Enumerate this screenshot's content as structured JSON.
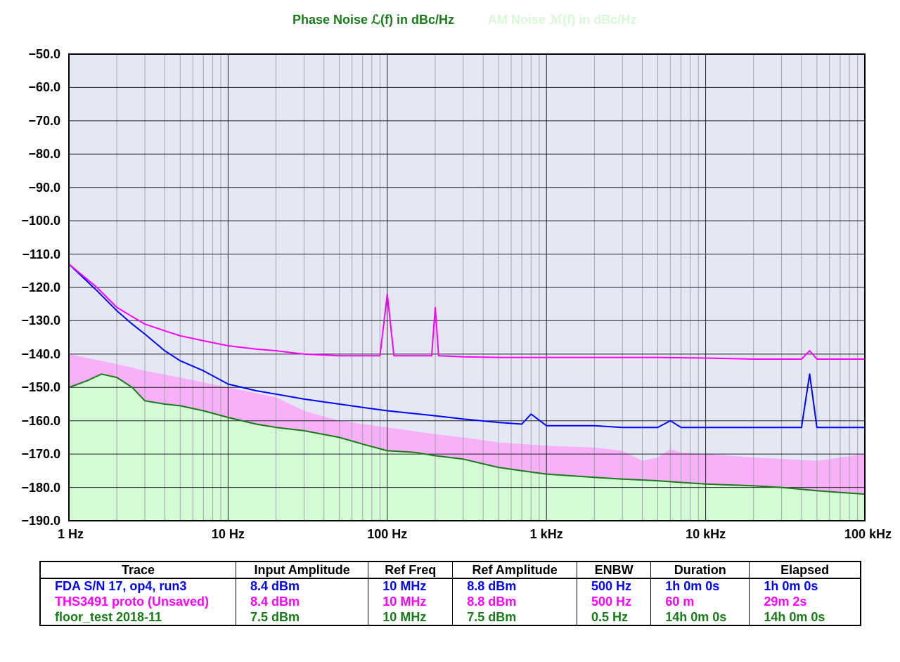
{
  "header": {
    "phase_title": "Phase Noise ℒ(f) in dBc/Hz",
    "am_title": "AM Noise ℳ(f) in dBc/Hz",
    "phase_color": "#1a7a1a",
    "am_color": "#d8f8d8"
  },
  "chart_data": {
    "type": "line",
    "xscale": "log",
    "xlim": [
      1,
      100000
    ],
    "ylim": [
      -190,
      -50
    ],
    "grid": true,
    "background": "#e4e8f4",
    "y_ticks": [
      "−50.0",
      "−60.0",
      "−70.0",
      "−80.0",
      "−90.0",
      "−100.0",
      "−110.0",
      "−120.0",
      "−130.0",
      "−140.0",
      "−150.0",
      "−160.0",
      "−170.0",
      "−180.0",
      "−190.0"
    ],
    "x_ticks": [
      "1 Hz",
      "10 Hz",
      "100 Hz",
      "1 kHz",
      "10 kHz",
      "100 kHz"
    ],
    "series": [
      {
        "name": "FDA S/N 17, op4, run3",
        "color": "#0000ff",
        "x": [
          1,
          1.5,
          2,
          2.5,
          3,
          4,
          5,
          7,
          10,
          15,
          20,
          30,
          50,
          70,
          100,
          200,
          300,
          500,
          700,
          800,
          1000,
          2000,
          3000,
          5000,
          6000,
          7000,
          10000,
          20000,
          30000,
          40000,
          45000,
          50000,
          70000,
          100000
        ],
        "y": [
          -113,
          -121,
          -127,
          -131,
          -134,
          -139,
          -142,
          -145,
          -149,
          -151,
          -152,
          -153.5,
          -155,
          -156,
          -157,
          -158.5,
          -159.5,
          -160.5,
          -161,
          -158,
          -161.5,
          -161.5,
          -162,
          -162,
          -160,
          -162,
          -162,
          -162,
          -162,
          -162,
          -146,
          -162,
          -162,
          -162
        ]
      },
      {
        "name": "THS3491 proto (Unsaved)",
        "color": "#ff00ff",
        "x": [
          1,
          1.5,
          2,
          3,
          4,
          5,
          7,
          10,
          15,
          20,
          30,
          50,
          70,
          90,
          100,
          110,
          150,
          190,
          200,
          210,
          300,
          500,
          700,
          1000,
          2000,
          5000,
          10000,
          20000,
          40000,
          45000,
          50000,
          100000
        ],
        "y": [
          -113,
          -120,
          -126,
          -131,
          -133,
          -134.5,
          -136,
          -137.5,
          -138.5,
          -139,
          -140,
          -140.5,
          -140.5,
          -140.5,
          -122,
          -140.5,
          -140.5,
          -140.5,
          -126,
          -140.5,
          -140.8,
          -141,
          -141,
          -141,
          -141,
          -141,
          -141.2,
          -141.5,
          -141.5,
          -139,
          -141.5,
          -141.5
        ]
      },
      {
        "name": "floor_test 2018-11",
        "color": "#1a7a1a",
        "x": [
          1,
          1.3,
          1.6,
          2,
          2.5,
          3,
          4,
          5,
          7,
          10,
          15,
          20,
          30,
          50,
          70,
          100,
          150,
          200,
          300,
          500,
          700,
          1000,
          2000,
          3000,
          5000,
          7000,
          10000,
          20000,
          30000,
          50000,
          70000,
          100000
        ],
        "y": [
          -150,
          -148,
          -146,
          -147,
          -150,
          -154,
          -155,
          -155.5,
          -157,
          -159,
          -161,
          -162,
          -163,
          -165,
          -167,
          -169,
          -169.5,
          -170.5,
          -171.5,
          -174,
          -175,
          -176,
          -177,
          -177.5,
          -178,
          -178.5,
          -179,
          -179.5,
          -180,
          -181,
          -181.5,
          -182
        ]
      }
    ],
    "areas": [
      {
        "name": "THS3491 floor fill",
        "color": "#f8b0f8",
        "x": [
          1,
          2,
          3,
          5,
          10,
          20,
          30,
          50,
          100,
          200,
          300,
          500,
          1000,
          2000,
          3000,
          4000,
          5000,
          6000,
          7000,
          10000,
          20000,
          50000,
          100000
        ],
        "y": [
          -140,
          -143,
          -145,
          -147,
          -150,
          -153,
          -157,
          -160,
          -162,
          -164,
          -165,
          -166.5,
          -167.5,
          -168,
          -169,
          -172,
          -171,
          -168.5,
          -169.5,
          -170,
          -171,
          -172,
          -170
        ]
      },
      {
        "name": "floor_test fill",
        "color": "#d4fcd4",
        "x": [
          1,
          1.3,
          1.6,
          2,
          2.5,
          3,
          4,
          5,
          7,
          10,
          15,
          20,
          30,
          50,
          70,
          100,
          150,
          200,
          300,
          500,
          700,
          1000,
          2000,
          3000,
          5000,
          7000,
          10000,
          20000,
          30000,
          50000,
          70000,
          100000
        ],
        "y": [
          -150,
          -148,
          -146,
          -147,
          -150,
          -154,
          -155,
          -155.5,
          -157,
          -159,
          -161,
          -162,
          -163,
          -165,
          -167,
          -169,
          -169.5,
          -170.5,
          -171.5,
          -174,
          -175,
          -176,
          -177,
          -177.5,
          -178,
          -178.5,
          -179,
          -179.5,
          -180,
          -181,
          -181.5,
          -182
        ]
      }
    ]
  },
  "table": {
    "headers": [
      "Trace",
      "Input Amplitude",
      "Ref Freq",
      "Ref Amplitude",
      "ENBW",
      "Duration",
      "Elapsed"
    ],
    "rows": [
      {
        "color": "#0000ff",
        "cells": [
          "FDA S/N 17, op4, run3",
          "8.4 dBm",
          "10 MHz",
          "8.8 dBm",
          "500 Hz",
          "1h 0m 0s",
          "1h 0m 0s"
        ]
      },
      {
        "color": "#ff00ff",
        "cells": [
          "THS3491 proto (Unsaved)",
          "8.4 dBm",
          "10 MHz",
          "8.8 dBm",
          "500 Hz",
          "60 m",
          "29m 2s"
        ]
      },
      {
        "color": "#1a7a1a",
        "cells": [
          "floor_test 2018-11",
          "7.5 dBm",
          "10 MHz",
          "7.5 dBm",
          "0.5 Hz",
          "14h 0m 0s",
          "14h 0m 0s"
        ]
      }
    ]
  }
}
